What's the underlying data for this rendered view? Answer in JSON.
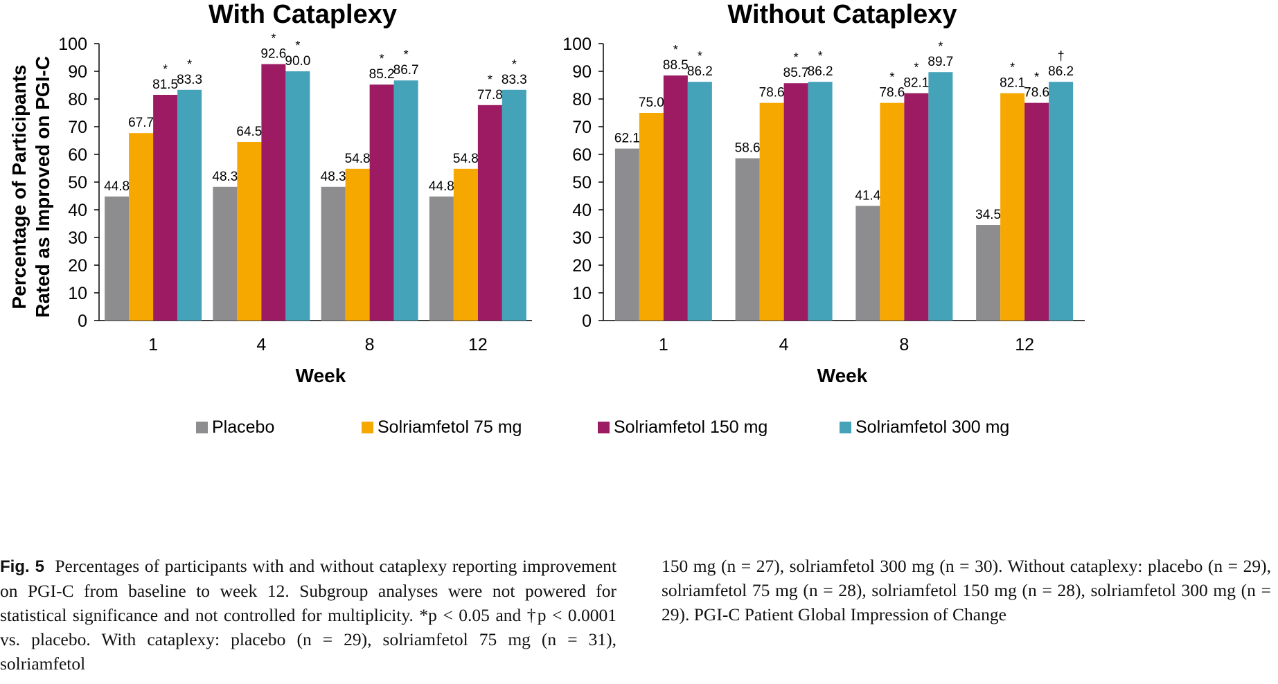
{
  "chart_data": [
    {
      "type": "bar",
      "title": "With Cataplexy",
      "xlabel": "Week",
      "ylabel": [
        "Percentage of Participants",
        "Rated as Improved on PGI-C"
      ],
      "ylim": [
        0,
        100
      ],
      "yticks": [
        0,
        10,
        20,
        30,
        40,
        50,
        60,
        70,
        80,
        90,
        100
      ],
      "categories": [
        "1",
        "4",
        "8",
        "12"
      ],
      "series": [
        {
          "name": "Placebo",
          "color": "#8d8c8f",
          "values": [
            44.8,
            48.3,
            48.3,
            44.8
          ],
          "labels": [
            "44.8",
            "48.3",
            "48.3",
            "44.8"
          ],
          "marks": [
            "",
            "",
            "",
            ""
          ]
        },
        {
          "name": "Solriamfetol 75 mg",
          "color": "#f7a800",
          "values": [
            67.7,
            64.5,
            54.8,
            54.8
          ],
          "labels": [
            "67.7",
            "64.5",
            "54.8",
            "54.8"
          ],
          "marks": [
            "",
            "",
            "",
            ""
          ]
        },
        {
          "name": "Solriamfetol 150 mg",
          "color": "#9c1b63",
          "values": [
            81.5,
            92.6,
            85.2,
            77.8
          ],
          "labels": [
            "81.5",
            "92.6",
            "85.2",
            "77.8"
          ],
          "marks": [
            "*",
            "*",
            "*",
            "*"
          ]
        },
        {
          "name": "Solriamfetol 300 mg",
          "color": "#44a3b9",
          "values": [
            83.3,
            90.0,
            86.7,
            83.3
          ],
          "labels": [
            "83.3",
            "90.0",
            "86.7",
            "83.3"
          ],
          "marks": [
            "*",
            "*",
            "*",
            "*"
          ]
        }
      ]
    },
    {
      "type": "bar",
      "title": "Without Cataplexy",
      "xlabel": "Week",
      "ylabel": "",
      "ylim": [
        0,
        100
      ],
      "yticks": [
        0,
        10,
        20,
        30,
        40,
        50,
        60,
        70,
        80,
        90,
        100
      ],
      "categories": [
        "1",
        "4",
        "8",
        "12"
      ],
      "series": [
        {
          "name": "Placebo",
          "color": "#8d8c8f",
          "values": [
            62.1,
            58.6,
            41.4,
            34.5
          ],
          "labels": [
            "62.1",
            "58.6",
            "41.4",
            "34.5"
          ],
          "marks": [
            "",
            "",
            "",
            ""
          ]
        },
        {
          "name": "Solriamfetol 75 mg",
          "color": "#f7a800",
          "values": [
            75.0,
            78.6,
            78.6,
            82.1
          ],
          "labels": [
            "75.0",
            "78.6",
            "78.6",
            "82.1"
          ],
          "marks": [
            "",
            "",
            "*",
            "*"
          ]
        },
        {
          "name": "Solriamfetol 150 mg",
          "color": "#9c1b63",
          "values": [
            88.5,
            85.7,
            82.1,
            78.6
          ],
          "labels": [
            "88.5",
            "85.7",
            "82.1",
            "78.6"
          ],
          "marks": [
            "*",
            "*",
            "*",
            "*"
          ]
        },
        {
          "name": "Solriamfetol 300 mg",
          "color": "#44a3b9",
          "values": [
            86.2,
            86.2,
            89.7,
            86.2
          ],
          "labels": [
            "86.2",
            "86.2",
            "89.7",
            "86.2"
          ],
          "marks": [
            "*",
            "*",
            "*",
            "†"
          ]
        }
      ]
    }
  ],
  "legend": [
    {
      "label": "Placebo",
      "color": "#8d8c8f"
    },
    {
      "label": "Solriamfetol 75 mg",
      "color": "#f7a800"
    },
    {
      "label": "Solriamfetol 150 mg",
      "color": "#9c1b63"
    },
    {
      "label": "Solriamfetol 300 mg",
      "color": "#44a3b9"
    }
  ],
  "caption": {
    "fig_label": "Fig. 5",
    "left_text": "Percentages of participants with and without cataplexy reporting improvement on PGI-C from baseline to week 12. Subgroup analyses were not powered for statistical significance and not controlled for multiplicity. *p < 0.05 and †p < 0.0001 vs. placebo. With cataplexy: placebo (n = 29), solriamfetol 75 mg (n = 31), solriamfetol",
    "right_text": "150 mg (n = 27), solriamfetol 300 mg (n = 30). Without cataplexy: placebo (n = 29), solriamfetol 75 mg (n = 28), solriamfetol 150 mg (n = 28), solriamfetol 300 mg (n = 29). PGI-C Patient Global Impression of Change"
  }
}
